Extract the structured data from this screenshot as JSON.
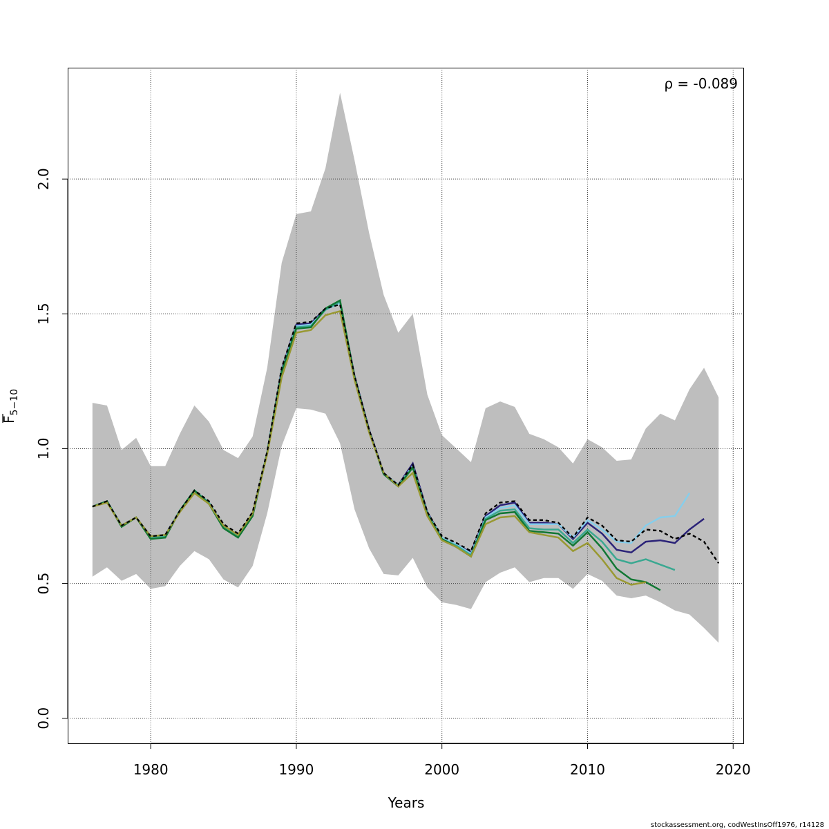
{
  "chart_data": {
    "type": "line",
    "xlabel": "Years",
    "ylabel_main": "F",
    "ylabel_sub": "5−10",
    "annotation": "ρ = -0.089",
    "source_note": "stockassessment.org, codWestInsOff1976, r14128",
    "xlim": [
      1974.3,
      2020.7
    ],
    "ylim": [
      -0.093,
      2.413
    ],
    "x_ticks": [
      1980,
      1990,
      2000,
      2010,
      2020
    ],
    "y_ticks": [
      0.0,
      0.5,
      1.0,
      1.5,
      2.0
    ],
    "y_tick_labels": [
      "0.0",
      "0.5",
      "1.0",
      "1.5",
      "2.0"
    ],
    "grid": true,
    "band": {
      "color": "#bebebe",
      "x": [
        1976,
        1977,
        1978,
        1979,
        1980,
        1981,
        1982,
        1983,
        1984,
        1985,
        1986,
        1987,
        1988,
        1989,
        1990,
        1991,
        1992,
        1993,
        1994,
        1995,
        1996,
        1997,
        1998,
        1999,
        2000,
        2001,
        2002,
        2003,
        2004,
        2005,
        2006,
        2007,
        2008,
        2009,
        2010,
        2011,
        2012,
        2013,
        2014,
        2015,
        2016,
        2017,
        2018,
        2019
      ],
      "upper": [
        1.17,
        1.16,
        0.995,
        1.04,
        0.935,
        0.935,
        1.055,
        1.16,
        1.1,
        0.995,
        0.965,
        1.045,
        1.3,
        1.69,
        1.87,
        1.88,
        2.04,
        2.32,
        2.07,
        1.8,
        1.57,
        1.43,
        1.5,
        1.2,
        1.05,
        1.0,
        0.95,
        1.15,
        1.175,
        1.155,
        1.055,
        1.035,
        1.005,
        0.945,
        1.035,
        1.005,
        0.955,
        0.96,
        1.075,
        1.13,
        1.105,
        1.22,
        1.3,
        1.19
      ],
      "lower": [
        0.525,
        0.56,
        0.51,
        0.535,
        0.48,
        0.49,
        0.565,
        0.62,
        0.59,
        0.515,
        0.485,
        0.565,
        0.76,
        1.01,
        1.15,
        1.145,
        1.13,
        1.02,
        0.775,
        0.63,
        0.535,
        0.53,
        0.595,
        0.485,
        0.43,
        0.42,
        0.405,
        0.505,
        0.54,
        0.56,
        0.505,
        0.52,
        0.52,
        0.48,
        0.535,
        0.51,
        0.455,
        0.445,
        0.455,
        0.43,
        0.4,
        0.385,
        0.335,
        0.28
      ]
    },
    "series": [
      {
        "color": "#000000",
        "dashed": true,
        "x": [
          1976,
          1977,
          1978,
          1979,
          1980,
          1981,
          1982,
          1983,
          1984,
          1985,
          1986,
          1987,
          1988,
          1989,
          1990,
          1991,
          1992,
          1993,
          1994,
          1995,
          1996,
          1997,
          1998,
          1999,
          2000,
          2001,
          2002,
          2003,
          2004,
          2005,
          2006,
          2007,
          2008,
          2009,
          2010,
          2011,
          2012,
          2013,
          2014,
          2015,
          2016,
          2017,
          2018,
          2019
        ],
        "values": [
          0.785,
          0.805,
          0.715,
          0.745,
          0.675,
          0.68,
          0.77,
          0.845,
          0.805,
          0.72,
          0.685,
          0.765,
          0.99,
          1.3,
          1.465,
          1.47,
          1.52,
          1.535,
          1.27,
          1.07,
          0.91,
          0.865,
          0.94,
          0.765,
          0.675,
          0.65,
          0.62,
          0.76,
          0.8,
          0.805,
          0.735,
          0.735,
          0.725,
          0.67,
          0.745,
          0.715,
          0.66,
          0.655,
          0.7,
          0.695,
          0.665,
          0.685,
          0.655,
          0.575
        ]
      },
      {
        "color": "#2b2378",
        "dashed": false,
        "x": [
          1976,
          1977,
          1978,
          1979,
          1980,
          1981,
          1982,
          1983,
          1984,
          1985,
          1986,
          1987,
          1988,
          1989,
          1990,
          1991,
          1992,
          1993,
          1994,
          1995,
          1996,
          1997,
          1998,
          1999,
          2000,
          2001,
          2002,
          2003,
          2004,
          2005,
          2006,
          2007,
          2008,
          2009,
          2010,
          2011,
          2012,
          2013,
          2014,
          2015,
          2016,
          2017,
          2018
        ],
        "values": [
          0.785,
          0.805,
          0.715,
          0.745,
          0.675,
          0.68,
          0.77,
          0.845,
          0.8,
          0.715,
          0.68,
          0.76,
          0.985,
          1.295,
          1.46,
          1.465,
          1.52,
          1.545,
          1.27,
          1.07,
          0.91,
          0.865,
          0.945,
          0.765,
          0.67,
          0.645,
          0.615,
          0.75,
          0.79,
          0.8,
          0.725,
          0.725,
          0.72,
          0.665,
          0.725,
          0.685,
          0.625,
          0.615,
          0.655,
          0.66,
          0.65,
          0.7,
          0.74
        ]
      },
      {
        "color": "#87ceeb",
        "dashed": false,
        "x": [
          1976,
          1977,
          1978,
          1979,
          1980,
          1981,
          1982,
          1983,
          1984,
          1985,
          1986,
          1987,
          1988,
          1989,
          1990,
          1991,
          1992,
          1993,
          1994,
          1995,
          1996,
          1997,
          1998,
          1999,
          2000,
          2001,
          2002,
          2003,
          2004,
          2005,
          2006,
          2007,
          2008,
          2009,
          2010,
          2011,
          2012,
          2013,
          2014,
          2015,
          2016,
          2017
        ],
        "values": [
          0.785,
          0.805,
          0.715,
          0.745,
          0.675,
          0.68,
          0.77,
          0.845,
          0.8,
          0.715,
          0.68,
          0.76,
          0.985,
          1.29,
          1.455,
          1.46,
          1.515,
          1.54,
          1.265,
          1.065,
          0.91,
          0.865,
          0.935,
          0.76,
          0.67,
          0.645,
          0.61,
          0.745,
          0.78,
          0.79,
          0.72,
          0.72,
          0.72,
          0.67,
          0.735,
          0.7,
          0.655,
          0.65,
          0.715,
          0.745,
          0.75,
          0.835
        ]
      },
      {
        "color": "#3aa891",
        "dashed": false,
        "x": [
          1976,
          1977,
          1978,
          1979,
          1980,
          1981,
          1982,
          1983,
          1984,
          1985,
          1986,
          1987,
          1988,
          1989,
          1990,
          1991,
          1992,
          1993,
          1994,
          1995,
          1996,
          1997,
          1998,
          1999,
          2000,
          2001,
          2002,
          2003,
          2004,
          2005,
          2006,
          2007,
          2008,
          2009,
          2010,
          2011,
          2012,
          2013,
          2014,
          2015,
          2016
        ],
        "values": [
          0.785,
          0.805,
          0.715,
          0.745,
          0.67,
          0.675,
          0.77,
          0.845,
          0.8,
          0.71,
          0.675,
          0.755,
          0.985,
          1.285,
          1.45,
          1.455,
          1.515,
          1.545,
          1.265,
          1.065,
          0.905,
          0.865,
          0.93,
          0.76,
          0.665,
          0.64,
          0.605,
          0.74,
          0.77,
          0.775,
          0.705,
          0.7,
          0.7,
          0.65,
          0.7,
          0.655,
          0.59,
          0.575,
          0.59,
          0.57,
          0.55
        ]
      },
      {
        "color": "#117733",
        "dashed": false,
        "x": [
          1976,
          1977,
          1978,
          1979,
          1980,
          1981,
          1982,
          1983,
          1984,
          1985,
          1986,
          1987,
          1988,
          1989,
          1990,
          1991,
          1992,
          1993,
          1994,
          1995,
          1996,
          1997,
          1998,
          1999,
          2000,
          2001,
          2002,
          2003,
          2004,
          2005,
          2006,
          2007,
          2008,
          2009,
          2010,
          2011,
          2012,
          2013,
          2014,
          2015
        ],
        "values": [
          0.785,
          0.805,
          0.71,
          0.745,
          0.665,
          0.67,
          0.77,
          0.845,
          0.795,
          0.705,
          0.67,
          0.75,
          0.985,
          1.285,
          1.445,
          1.45,
          1.52,
          1.55,
          1.265,
          1.065,
          0.905,
          0.86,
          0.93,
          0.755,
          0.665,
          0.635,
          0.6,
          0.735,
          0.76,
          0.765,
          0.695,
          0.69,
          0.685,
          0.64,
          0.69,
          0.63,
          0.555,
          0.515,
          0.505,
          0.475
        ]
      },
      {
        "color": "#999933",
        "dashed": false,
        "x": [
          1976,
          1977,
          1978,
          1979,
          1980,
          1981,
          1982,
          1983,
          1984,
          1985,
          1986,
          1987,
          1988,
          1989,
          1990,
          1991,
          1992,
          1993,
          1994,
          1995,
          1996,
          1997,
          1998,
          1999,
          2000,
          2001,
          2002,
          2003,
          2004,
          2005,
          2006,
          2007,
          2008,
          2009,
          2010,
          2011,
          2012,
          2013,
          2014
        ],
        "values": [
          0.785,
          0.8,
          0.715,
          0.745,
          0.675,
          0.68,
          0.765,
          0.835,
          0.795,
          0.715,
          0.68,
          0.76,
          0.98,
          1.265,
          1.43,
          1.44,
          1.495,
          1.51,
          1.255,
          1.06,
          0.91,
          0.86,
          0.91,
          0.75,
          0.66,
          0.635,
          0.6,
          0.72,
          0.745,
          0.75,
          0.69,
          0.68,
          0.67,
          0.62,
          0.65,
          0.59,
          0.52,
          0.495,
          0.505
        ]
      }
    ]
  }
}
